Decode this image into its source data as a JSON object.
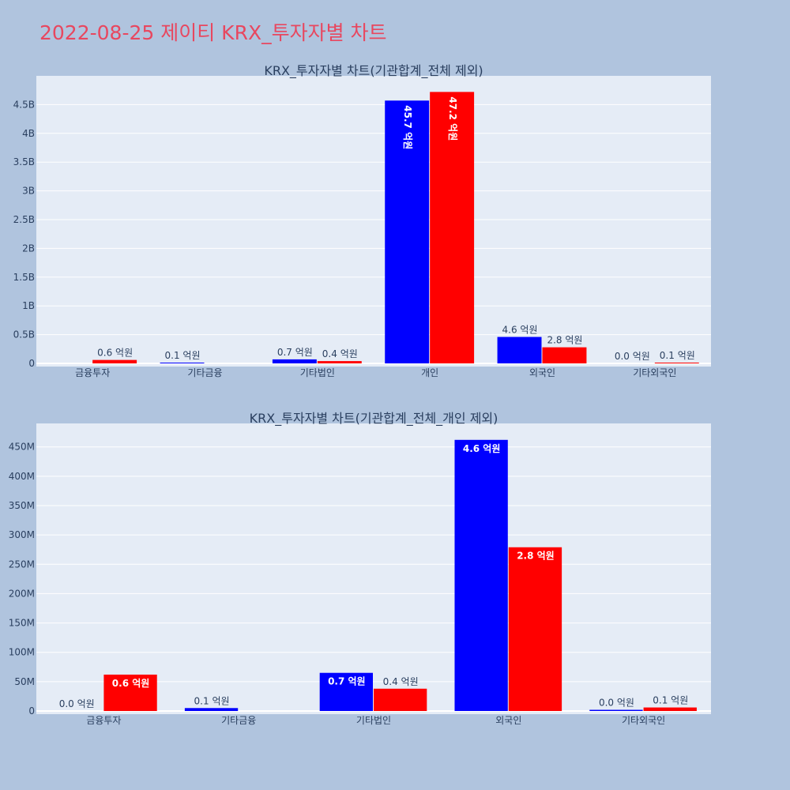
{
  "page_title": "2022-08-25 제이티 KRX_투자자별 차트",
  "colors": {
    "buy": "#0000ff",
    "sell": "#ff0000",
    "title": "#e8475f",
    "plot_bg": "#e5ecf6",
    "page_bg": "#b0c4de"
  },
  "chart_data": [
    {
      "type": "bar",
      "title": "KRX_투자자별 차트(기관합계_전체 제외)",
      "categories": [
        "금융투자",
        "기타금융",
        "기타법인",
        "개인",
        "외국인",
        "기타외국인"
      ],
      "series": [
        {
          "color": "#0000ff",
          "values": [
            0,
            10000000,
            70000000,
            4570000000,
            460000000,
            0
          ],
          "labels": [
            "",
            "0.1 억원",
            "0.7 억원",
            "45.7 억원",
            "4.6 억원",
            "0.0 억원"
          ]
        },
        {
          "color": "#ff0000",
          "values": [
            60000000,
            0,
            40000000,
            4720000000,
            280000000,
            10000000
          ],
          "labels": [
            "0.6 억원",
            "",
            "0.4 억원",
            "47.2 억원",
            "2.8 억원",
            "0.1 억원"
          ]
        }
      ],
      "yticks": [
        0,
        500000000,
        1000000000,
        1500000000,
        2000000000,
        2500000000,
        3000000000,
        3500000000,
        4000000000,
        4500000000
      ],
      "ytick_labels": [
        "0",
        "0.5B",
        "1B",
        "1.5B",
        "2B",
        "2.5B",
        "3B",
        "3.5B",
        "4B",
        "4.5B"
      ],
      "ylim": [
        0,
        5000000000
      ],
      "grid": true,
      "legend": "none"
    },
    {
      "type": "bar",
      "title": "KRX_투자자별 차트(기관합계_전체_개인 제외)",
      "categories": [
        "금융투자",
        "기타금융",
        "기타법인",
        "외국인",
        "기타외국인"
      ],
      "series": [
        {
          "color": "#0000ff",
          "values": [
            0,
            5000000,
            65000000,
            462000000,
            2000000
          ],
          "labels": [
            "0.0 억원",
            "0.1 억원",
            "0.7 억원",
            "4.6 억원",
            "0.0 억원"
          ]
        },
        {
          "color": "#ff0000",
          "values": [
            62000000,
            0,
            38000000,
            279000000,
            6000000
          ],
          "labels": [
            "0.6 억원",
            "",
            "0.4 억원",
            "2.8 억원",
            "0.1 억원"
          ]
        }
      ],
      "yticks": [
        0,
        50000000,
        100000000,
        150000000,
        200000000,
        250000000,
        300000000,
        350000000,
        400000000,
        450000000
      ],
      "ytick_labels": [
        "0",
        "50M",
        "100M",
        "150M",
        "200M",
        "250M",
        "300M",
        "350M",
        "400M",
        "450M"
      ],
      "ylim": [
        0,
        490000000
      ],
      "grid": true,
      "legend": "none"
    }
  ]
}
